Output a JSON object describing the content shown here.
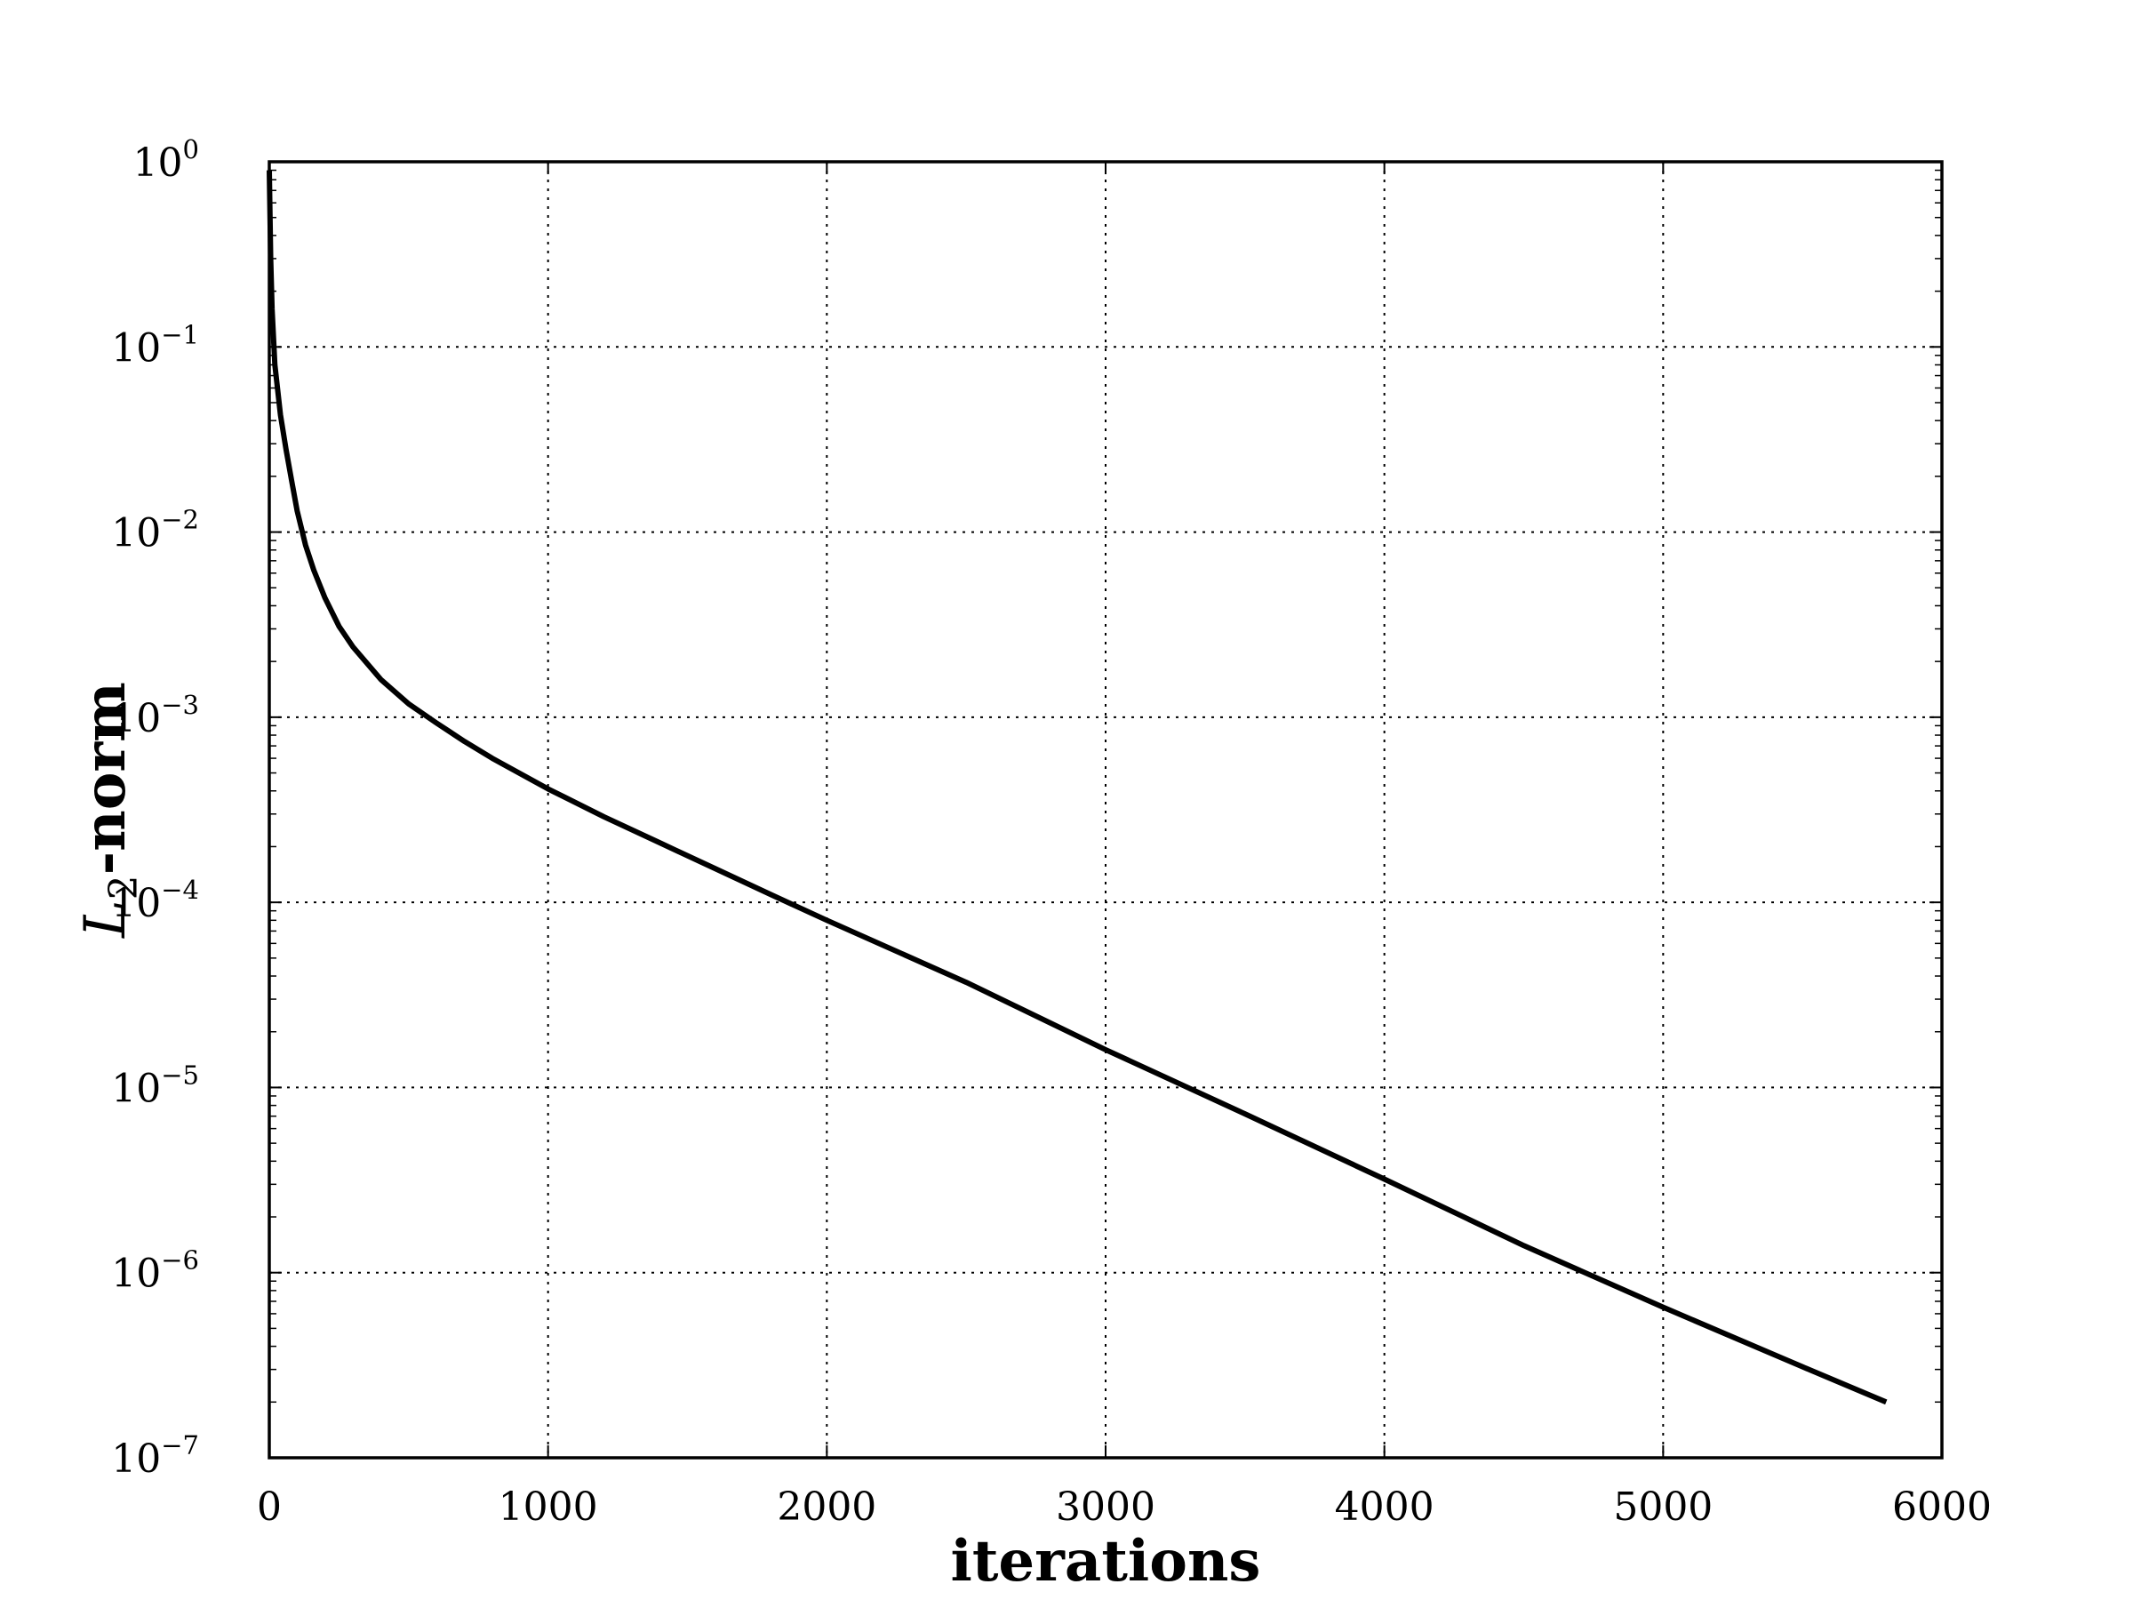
{
  "chart_data": {
    "type": "line",
    "title": "",
    "xlabel": "iterations",
    "ylabel": {
      "symbol": "L",
      "subscript": "2",
      "suffix": "-norm"
    },
    "xlim": [
      0,
      6000
    ],
    "ylim": [
      1e-07,
      1
    ],
    "yscale": "log",
    "grid": true,
    "legend": "none",
    "x_ticks": [
      "0",
      "1000",
      "2000",
      "3000",
      "4000",
      "5000",
      "6000"
    ],
    "y_ticks": [
      {
        "base": "10",
        "exp": "0"
      },
      {
        "base": "10",
        "exp": "−1"
      },
      {
        "base": "10",
        "exp": "−2"
      },
      {
        "base": "10",
        "exp": "−3"
      },
      {
        "base": "10",
        "exp": "−4"
      },
      {
        "base": "10",
        "exp": "−5"
      },
      {
        "base": "10",
        "exp": "−6"
      },
      {
        "base": "10",
        "exp": "−7"
      }
    ],
    "series": [
      {
        "color": "#000000",
        "x": [
          0,
          5,
          10,
          20,
          40,
          60,
          80,
          100,
          130,
          160,
          200,
          250,
          300,
          400,
          500,
          600,
          700,
          800,
          1000,
          1200,
          1400,
          1600,
          1800,
          2000,
          2500,
          3000,
          3500,
          4000,
          4500,
          5000,
          5500,
          5800
        ],
        "y": [
          0.9,
          0.3,
          0.16,
          0.08,
          0.043,
          0.028,
          0.019,
          0.013,
          0.0085,
          0.0062,
          0.0044,
          0.0031,
          0.0024,
          0.0016,
          0.00118,
          0.00093,
          0.00074,
          0.0006,
          0.00041,
          0.00029,
          0.00021,
          0.000152,
          0.00011,
          8e-05,
          3.7e-05,
          1.6e-05,
          7.2e-06,
          3.2e-06,
          1.4e-06,
          6.5e-07,
          3.1e-07,
          2e-07
        ]
      }
    ]
  }
}
